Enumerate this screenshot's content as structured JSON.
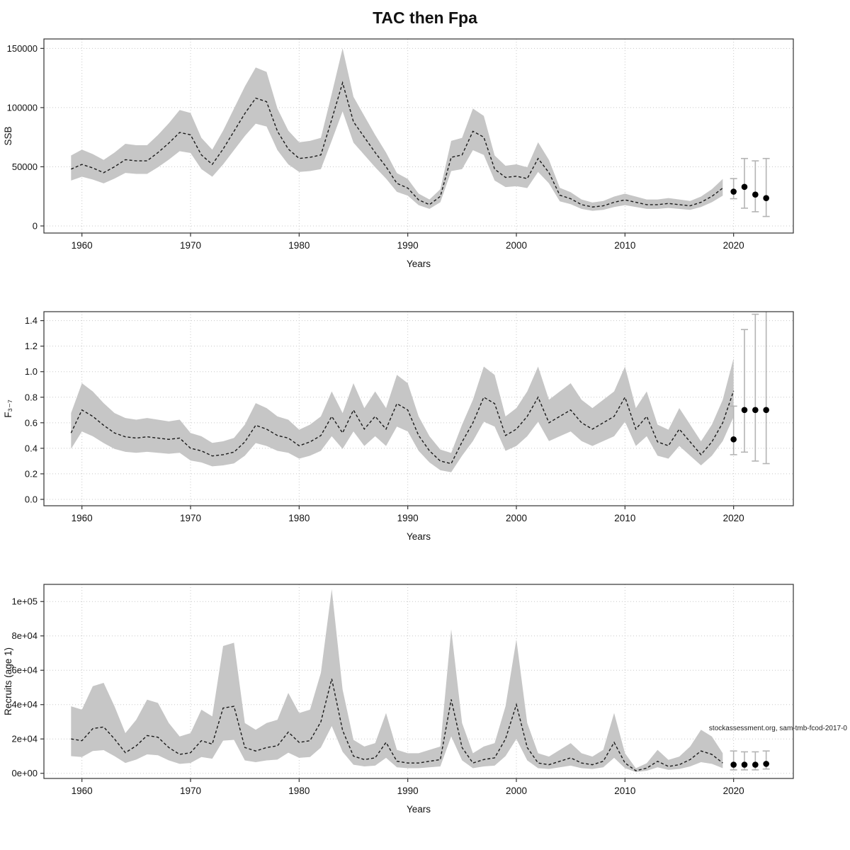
{
  "title": "TAC then Fpa",
  "colors": {
    "band": "#c6c6c6",
    "line": "#1a1a1a",
    "errorbar": "#b4b4b4",
    "dot": "#000000",
    "grid": "#c8c8c8",
    "box": "#333333"
  },
  "chart_data": [
    {
      "type": "line",
      "name": "ssb-over-time",
      "xlabel": "Years",
      "ylabel": "SSB",
      "xlim": [
        1956.5,
        2025.5
      ],
      "ylim": [
        -6000,
        158000
      ],
      "xticks": [
        1960,
        1970,
        1980,
        1990,
        2000,
        2010,
        2020
      ],
      "yticks": [
        0,
        50000,
        100000,
        150000
      ],
      "ytick_labels": [
        "0",
        "50000",
        "100000",
        "150000"
      ],
      "band_factors": [
        0.8,
        1.24
      ],
      "years_start": 1959,
      "values": [
        48000,
        52000,
        49000,
        45000,
        50000,
        56000,
        55000,
        55000,
        62000,
        70000,
        79000,
        77000,
        60000,
        52000,
        65000,
        80000,
        95000,
        108000,
        105000,
        80000,
        65000,
        57000,
        58000,
        60000,
        90000,
        121000,
        88000,
        75000,
        62000,
        50000,
        36000,
        32000,
        22000,
        18000,
        25000,
        58000,
        60000,
        80000,
        75000,
        48000,
        41000,
        42000,
        40000,
        57000,
        45000,
        26000,
        23000,
        18000,
        16000,
        17000,
        20000,
        22000,
        20000,
        18000,
        18000,
        19000,
        18000,
        17000,
        20000,
        25000,
        32000
      ],
      "forecast": {
        "years": [
          2020,
          2021,
          2022,
          2023
        ],
        "values": [
          29000,
          33000,
          26500,
          23500
        ],
        "lo": [
          23000,
          15000,
          12000,
          8000
        ],
        "hi": [
          40000,
          57000,
          55000,
          57000
        ]
      }
    },
    {
      "type": "line",
      "name": "fishing-mortality-over-time",
      "xlabel": "Years",
      "ylabel": "F₃₋₇",
      "xlim": [
        1956.5,
        2025.5
      ],
      "ylim": [
        -0.05,
        1.47
      ],
      "xticks": [
        1960,
        1970,
        1980,
        1990,
        2000,
        2010,
        2020
      ],
      "yticks": [
        0.0,
        0.2,
        0.4,
        0.6,
        0.8,
        1.0,
        1.2,
        1.4
      ],
      "ytick_labels": [
        "0.0",
        "0.2",
        "0.4",
        "0.6",
        "0.8",
        "1.0",
        "1.2",
        "1.4"
      ],
      "band_factors": [
        0.76,
        1.3
      ],
      "years_start": 1959,
      "values": [
        0.52,
        0.7,
        0.65,
        0.58,
        0.52,
        0.49,
        0.48,
        0.49,
        0.48,
        0.47,
        0.48,
        0.4,
        0.38,
        0.34,
        0.35,
        0.37,
        0.45,
        0.58,
        0.55,
        0.5,
        0.48,
        0.42,
        0.45,
        0.5,
        0.65,
        0.52,
        0.7,
        0.55,
        0.65,
        0.55,
        0.75,
        0.7,
        0.5,
        0.38,
        0.3,
        0.28,
        0.45,
        0.6,
        0.8,
        0.75,
        0.5,
        0.55,
        0.65,
        0.8,
        0.6,
        0.65,
        0.7,
        0.6,
        0.55,
        0.6,
        0.65,
        0.8,
        0.55,
        0.65,
        0.45,
        0.42,
        0.55,
        0.45,
        0.35,
        0.45,
        0.6,
        0.85
      ],
      "forecast": {
        "years": [
          2020,
          2021,
          2022,
          2023
        ],
        "values": [
          0.47,
          0.7,
          0.7,
          0.7
        ],
        "lo": [
          0.35,
          0.37,
          0.3,
          0.28
        ],
        "hi": [
          0.73,
          1.33,
          1.45,
          1.52
        ]
      }
    },
    {
      "type": "line",
      "name": "recruits-over-time",
      "xlabel": "Years",
      "ylabel": "Recruits (age 1)",
      "xlim": [
        1956.5,
        2025.5
      ],
      "ylim": [
        -3000,
        110000
      ],
      "xticks": [
        1960,
        1970,
        1980,
        1990,
        2000,
        2010,
        2020
      ],
      "yticks": [
        0,
        20000,
        40000,
        60000,
        80000,
        100000
      ],
      "ytick_labels": [
        "0e+00",
        "2e+04",
        "4e+04",
        "6e+04",
        "8e+04",
        "1e+05"
      ],
      "band_factors": [
        0.5,
        1.95
      ],
      "years_start": 1959,
      "values": [
        20000,
        19000,
        26000,
        27000,
        20000,
        12000,
        16000,
        22000,
        21000,
        15000,
        11000,
        12000,
        19000,
        17000,
        38000,
        39000,
        15000,
        13000,
        15000,
        16000,
        24000,
        18000,
        19000,
        30000,
        55000,
        25000,
        10000,
        8000,
        9000,
        18000,
        7000,
        6000,
        6000,
        7000,
        8000,
        43000,
        15000,
        6000,
        8000,
        9000,
        20000,
        40000,
        15000,
        6000,
        5000,
        7000,
        9000,
        6000,
        5000,
        7000,
        18000,
        6000,
        1500,
        3000,
        7000,
        4000,
        5000,
        8000,
        13000,
        11000,
        6000
      ],
      "forecast": {
        "years": [
          2020,
          2021,
          2022,
          2023
        ],
        "values": [
          5000,
          5000,
          5000,
          5500
        ],
        "lo": [
          2000,
          2000,
          2000,
          2500
        ],
        "hi": [
          13000,
          12500,
          12500,
          13000
        ]
      },
      "annotation": {
        "text": "stockassessment.org, sam-tmb-fcod-2017-0",
        "y": 25000
      }
    }
  ]
}
